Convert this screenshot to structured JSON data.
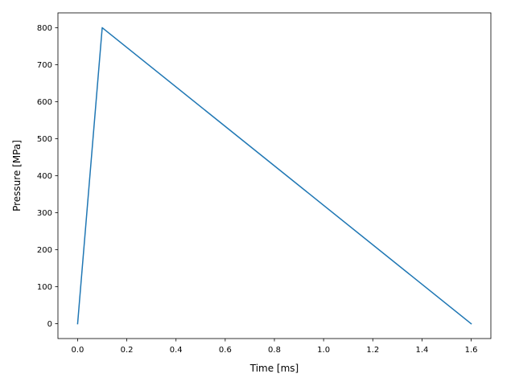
{
  "chart_data": {
    "type": "line",
    "title": "",
    "xlabel": "Time [ms]",
    "ylabel": "Pressure [MPa]",
    "xlim": [
      -0.08,
      1.68
    ],
    "ylim": [
      -40,
      840
    ],
    "xticks": [
      0.0,
      0.2,
      0.4,
      0.6,
      0.8,
      1.0,
      1.2,
      1.4,
      1.6
    ],
    "xtick_labels": [
      "0.0",
      "0.2",
      "0.4",
      "0.6",
      "0.8",
      "1.0",
      "1.2",
      "1.4",
      "1.6"
    ],
    "yticks": [
      0,
      100,
      200,
      300,
      400,
      500,
      600,
      700,
      800
    ],
    "ytick_labels": [
      "0",
      "100",
      "200",
      "300",
      "400",
      "500",
      "600",
      "700",
      "800"
    ],
    "grid": false,
    "series": [
      {
        "color": "#1f77b4",
        "x": [
          0.0,
          0.1,
          1.6
        ],
        "y": [
          0,
          800,
          0
        ]
      }
    ]
  }
}
